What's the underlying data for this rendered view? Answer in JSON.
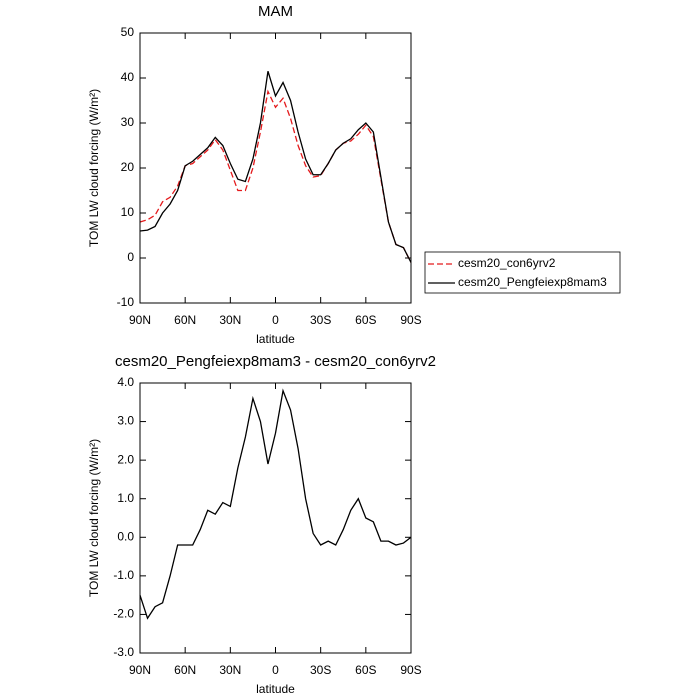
{
  "chart_data": [
    {
      "type": "line",
      "title": "MAM",
      "xlabel": "latitude",
      "ylabel": "TOM LW cloud forcing (W/m²)",
      "x": [
        90,
        85,
        80,
        75,
        70,
        65,
        60,
        55,
        50,
        45,
        40,
        35,
        30,
        25,
        20,
        15,
        10,
        5,
        0,
        -5,
        -10,
        -15,
        -20,
        -25,
        -30,
        -35,
        -40,
        -45,
        -50,
        -55,
        -60,
        -65,
        -70,
        -75,
        -80,
        -85,
        -90
      ],
      "series": [
        {
          "name": "cesm20_con6yrv2",
          "color": "#e41a1c",
          "dash": "dashed",
          "values": [
            8,
            8.5,
            9.5,
            12.5,
            13.5,
            16,
            20.5,
            21,
            22.5,
            24,
            26.3,
            24,
            19.5,
            15,
            15,
            20,
            28,
            37,
            33.5,
            35.5,
            31,
            25,
            20.5,
            18,
            18.3,
            21,
            24,
            25.5,
            26,
            27.5,
            29.5,
            27,
            17.5,
            8,
            3,
            2.3,
            -1
          ]
        },
        {
          "name": "cesm20_Pengfeiexp8mam3",
          "color": "#000000",
          "dash": "solid",
          "values": [
            6,
            6.2,
            7,
            10,
            12,
            15,
            20.5,
            21.5,
            23,
            24.5,
            26.8,
            25,
            21,
            17.5,
            17,
            22,
            30,
            41.5,
            36,
            39,
            35,
            28,
            22,
            18.5,
            18.5,
            21,
            24,
            25.5,
            26.5,
            28.5,
            30,
            28,
            18,
            8,
            3,
            2.3,
            -1
          ]
        }
      ],
      "xlim": [
        90,
        -90
      ],
      "xticks": [
        {
          "value": 90,
          "label": "90N"
        },
        {
          "value": 60,
          "label": "60N"
        },
        {
          "value": 30,
          "label": "30N"
        },
        0,
        {
          "value": -30,
          "label": "30S"
        },
        {
          "value": -60,
          "label": "60S"
        },
        {
          "value": -90,
          "label": "90S"
        }
      ],
      "ylim": [
        -10,
        50
      ],
      "yticks": [
        -10,
        0,
        10,
        20,
        30,
        40,
        50
      ],
      "legend": "right"
    },
    {
      "type": "line",
      "title": "cesm20_Pengfeiexp8mam3 - cesm20_con6yrv2",
      "xlabel": "latitude",
      "ylabel": "TOM LW cloud forcing (W/m²)",
      "x": [
        90,
        85,
        80,
        75,
        70,
        65,
        60,
        55,
        50,
        45,
        40,
        35,
        30,
        25,
        20,
        15,
        10,
        5,
        0,
        -5,
        -10,
        -15,
        -20,
        -25,
        -30,
        -35,
        -40,
        -45,
        -50,
        -55,
        -60,
        -65,
        -70,
        -75,
        -80,
        -85,
        -90
      ],
      "color": "#000000",
      "values": [
        -1.5,
        -2.1,
        -1.8,
        -1.7,
        -1.0,
        -0.2,
        -0.2,
        -0.2,
        0.2,
        0.7,
        0.6,
        0.9,
        0.8,
        1.8,
        2.6,
        3.6,
        3.0,
        1.9,
        2.7,
        3.8,
        3.3,
        2.3,
        1.0,
        0.1,
        -0.2,
        -0.1,
        -0.2,
        0.2,
        0.7,
        1.0,
        0.5,
        0.4,
        -0.1,
        -0.1,
        -0.2,
        -0.15,
        0.0
      ],
      "xlim": [
        90,
        -90
      ],
      "xticks": [
        {
          "value": 90,
          "label": "90N"
        },
        {
          "value": 60,
          "label": "60N"
        },
        {
          "value": 30,
          "label": "30N"
        },
        0,
        {
          "value": -30,
          "label": "30S"
        },
        {
          "value": -60,
          "label": "60S"
        },
        {
          "value": -90,
          "label": "90S"
        }
      ],
      "ylim": [
        -3,
        4
      ],
      "yticks": [
        {
          "value": -3,
          "label": "-3.0"
        },
        {
          "value": -2,
          "label": "-2.0"
        },
        {
          "value": -1,
          "label": "-1.0"
        },
        {
          "value": 0,
          "label": "0.0"
        },
        {
          "value": 1,
          "label": "1.0"
        },
        {
          "value": 2,
          "label": "2.0"
        },
        {
          "value": 3,
          "label": "3.0"
        },
        {
          "value": 4,
          "label": "4.0"
        }
      ]
    }
  ]
}
